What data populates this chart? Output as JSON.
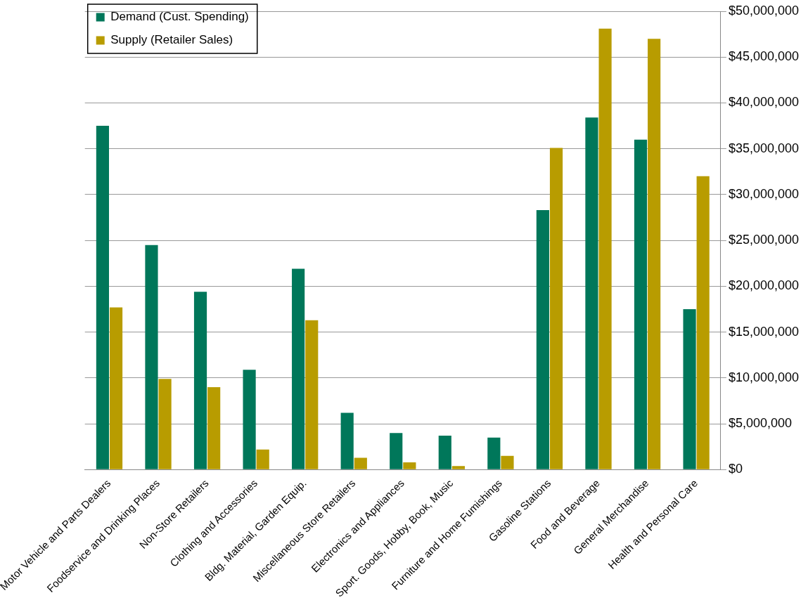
{
  "chart_data": {
    "type": "bar",
    "categories": [
      "Motor Vehicle and Parts Dealers",
      "Foodservice and Drinking Places",
      "Non-Store Retailers",
      "Clothing and Accessories",
      "Bldg. Material, Garden Equip.",
      "Miscellaneous Store Retailers",
      "Electronics and Appliances",
      "Sport. Goods, Hobby, Book, Music",
      "Furniture and Home Fumishings",
      "Gasoline Stations",
      "Food and Beverage",
      "General Merchandise",
      "Health and Personal Care"
    ],
    "series": [
      {
        "name": "Demand (Cust. Spending)",
        "color": "#00775a",
        "values": [
          37500000,
          24500000,
          19400000,
          10900000,
          21900000,
          6200000,
          4000000,
          3700000,
          3500000,
          28300000,
          38400000,
          36000000,
          17500000
        ]
      },
      {
        "name": "Supply (Retailer Sales)",
        "color": "#b89c00",
        "values": [
          17700000,
          9900000,
          9000000,
          2200000,
          16300000,
          1300000,
          800000,
          400000,
          1500000,
          35100000,
          48100000,
          47000000,
          32000000
        ]
      }
    ],
    "ylim": [
      0,
      50000000
    ],
    "yticks": [
      {
        "value": 0,
        "label": "$0"
      },
      {
        "value": 5000000,
        "label": "$5,000,000"
      },
      {
        "value": 10000000,
        "label": "$10,000,000"
      },
      {
        "value": 15000000,
        "label": "$15,000,000"
      },
      {
        "value": 20000000,
        "label": "$20,000,000"
      },
      {
        "value": 25000000,
        "label": "$25,000,000"
      },
      {
        "value": 30000000,
        "label": "$30,000,000"
      },
      {
        "value": 35000000,
        "label": "$35,000,000"
      },
      {
        "value": 40000000,
        "label": "$40,000,000"
      },
      {
        "value": 45000000,
        "label": "$45,000,000"
      },
      {
        "value": 50000000,
        "label": "$50,000,000"
      }
    ],
    "grid": "y",
    "legend": "top left"
  }
}
